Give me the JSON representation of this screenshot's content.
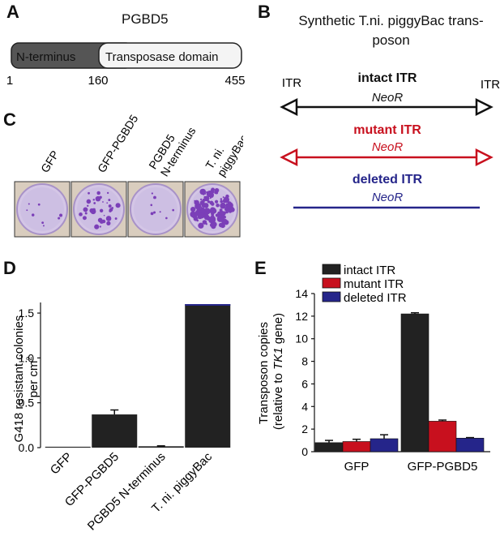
{
  "panels": {
    "a": {
      "letter": "A",
      "protein": "PGBD5",
      "domain_n": "N-terminus",
      "domain_t": "Transposase domain",
      "pos_start": "1",
      "pos_mid": "160",
      "pos_end": "455",
      "colors": {
        "n_terminus": "#555555",
        "transposase": "#f4f4f4"
      }
    },
    "b": {
      "letter": "B",
      "title_line1": "Synthetic T.ni. piggyBac trans-",
      "title_line2": "poson",
      "itr_left": "ITR",
      "itr_right": "ITR",
      "constructs": [
        {
          "label": "intact ITR",
          "gene": "NeoR",
          "color": "#111111"
        },
        {
          "label": "mutant ITR",
          "gene": "NeoR",
          "color": "#c8101e"
        },
        {
          "label": "deleted ITR",
          "gene": "NeoR",
          "color": "#25258a"
        }
      ]
    },
    "c": {
      "letter": "C",
      "plates": [
        {
          "label_lines": [
            "GFP"
          ],
          "colony_level": "few"
        },
        {
          "label_lines": [
            "GFP-PGBD5"
          ],
          "colony_level": "moderate"
        },
        {
          "label_lines": [
            "PGBD5",
            "N-terminus"
          ],
          "colony_level": "few"
        },
        {
          "label_lines": [
            "T. ni.",
            "piggyBac"
          ],
          "colony_level": "many"
        }
      ]
    },
    "d": {
      "letter": "D"
    },
    "e": {
      "letter": "E"
    }
  },
  "chart_data": [
    {
      "type": "bar",
      "panel": "D",
      "ylabel_line1": "G418 resistant colonies",
      "ylabel_line2": "per cm",
      "ylabel_sup": "2",
      "ylim": [
        0,
        1.6
      ],
      "yticks": [
        "0.0",
        "0.5",
        "1.0",
        "1.5"
      ],
      "ytick_values": [
        0,
        0.5,
        1.0,
        1.5
      ],
      "categories": [
        "GFP",
        "GFP-PGBD5",
        "PGBD5 N-terminus",
        "T. ni. piggyBac"
      ],
      "values": [
        0.01,
        0.37,
        0.015,
        1.6
      ],
      "errors": [
        0.0,
        0.05,
        0.005,
        0.0
      ],
      "bar_color": "#222222"
    },
    {
      "type": "bar",
      "panel": "E",
      "ylabel_line1": "Transposon copies",
      "ylabel_line2_pre": "(relative to ",
      "ylabel_line2_it": "TK1",
      "ylabel_line2_post": " gene)",
      "ylim": [
        0,
        14
      ],
      "yticks": [
        "0",
        "2",
        "4",
        "6",
        "8",
        "10",
        "12",
        "14"
      ],
      "ytick_values": [
        0,
        2,
        4,
        6,
        8,
        10,
        12,
        14
      ],
      "categories": [
        "GFP",
        "GFP-PGBD5"
      ],
      "series": [
        {
          "name": "intact ITR",
          "color": "#222222",
          "values": [
            0.8,
            12.2
          ],
          "errors": [
            0.2,
            0.1
          ]
        },
        {
          "name": "mutant ITR",
          "color": "#c8101e",
          "values": [
            0.9,
            2.7
          ],
          "errors": [
            0.2,
            0.1
          ]
        },
        {
          "name": "deleted ITR",
          "color": "#25258a",
          "values": [
            1.15,
            1.2
          ],
          "errors": [
            0.35,
            0.05
          ]
        }
      ],
      "legend_position": "top-left"
    }
  ]
}
